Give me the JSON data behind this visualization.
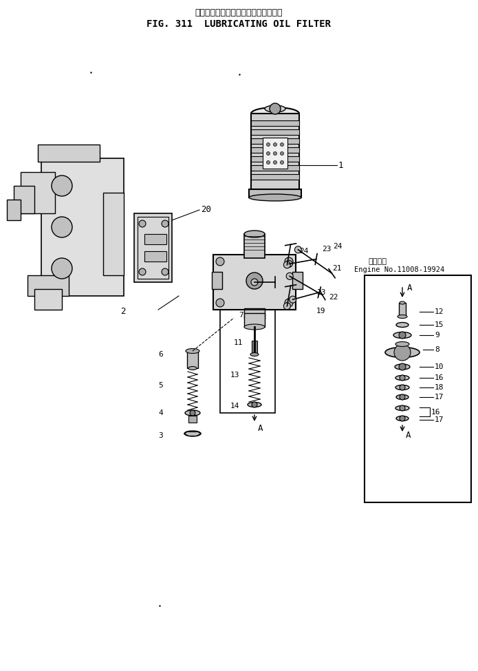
{
  "title_japanese": "ルーブリケーティングオイルフィルタ",
  "title_english": "FIG. 311  LUBRICATING OIL FILTER",
  "bg_color": "#ffffff",
  "line_color": "#000000",
  "box_label_japanese": "適用号機",
  "box_label_engine": "Engine No.11008-19924",
  "fig_width": 6.95,
  "fig_height": 9.75,
  "dpi": 100
}
